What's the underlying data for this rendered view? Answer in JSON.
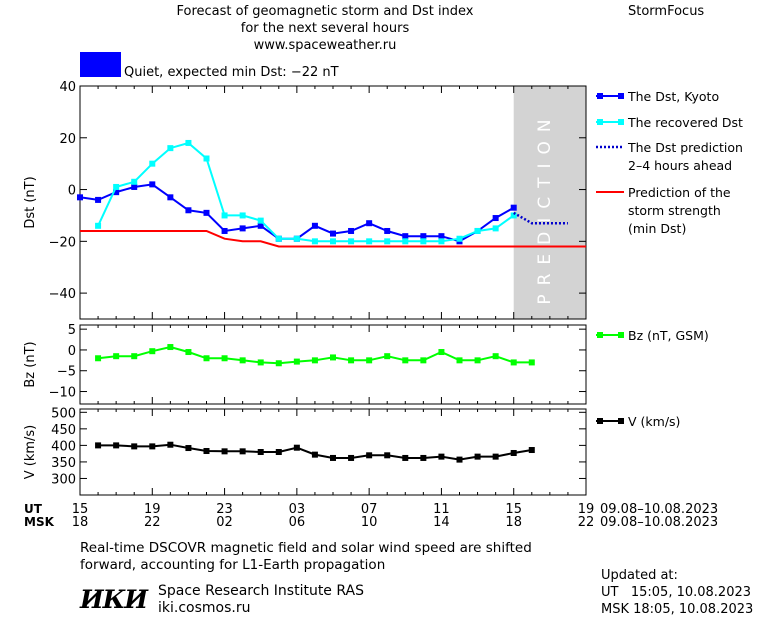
{
  "header": {
    "title_line1": "Forecast of geomagnetic storm and Dst index",
    "title_line2": "for the next several hours",
    "title_line3": "www.spaceweather.ru",
    "brand": "StormFocus",
    "status_text": "Quiet, expected min Dst: −22 nT",
    "status_color": "#0000ff"
  },
  "footer": {
    "note_line1": "Real-time DSCOVR magnetic field and solar wind speed are shifted",
    "note_line2": "forward, accounting for L1-Earth propagation",
    "institute_logo": "ИКИ",
    "institute_name": "Space Research Institute RAS",
    "institute_url": "iki.cosmos.ru",
    "updated_label": "Updated at:",
    "updated_ut": "UT   15:05, 10.08.2023",
    "updated_msk": "MSK 18:05, 10.08.2023"
  },
  "time_axis": {
    "ut_label": "UT",
    "msk_label": "MSK",
    "ut_ticks": [
      "15",
      "19",
      "23",
      "03",
      "07",
      "11",
      "15",
      "19"
    ],
    "msk_ticks": [
      "18",
      "22",
      "02",
      "06",
      "10",
      "14",
      "18",
      "22"
    ],
    "ut_range": "09.08–10.08.2023",
    "msk_range": "09.08–10.08.2023"
  },
  "chart_data": [
    {
      "type": "line",
      "name": "dst",
      "ylabel": "Dst (nT)",
      "ylim": [
        -50,
        40
      ],
      "yticks": [
        40,
        20,
        0,
        -20,
        -40
      ],
      "xlim": [
        0,
        28
      ],
      "prediction_zone": [
        24,
        28
      ],
      "prediction_text": "PREDICTION",
      "series": [
        {
          "name": "The Dst, Kyoto",
          "color": "#0000ff",
          "marker": "square",
          "style": "solid",
          "x": [
            0,
            1,
            2,
            3,
            4,
            5,
            6,
            7,
            8,
            9,
            10,
            11,
            12,
            13,
            14,
            15,
            16,
            17,
            18,
            19,
            20,
            21,
            22,
            23,
            24
          ],
          "y": [
            -3,
            -4,
            -1,
            1,
            2,
            -3,
            -8,
            -9,
            -16,
            -15,
            -14,
            -19,
            -19,
            -14,
            -17,
            -16,
            -13,
            -16,
            -18,
            -18,
            -18,
            -20,
            -16,
            -11,
            -7
          ]
        },
        {
          "name": "The recovered Dst",
          "color": "#00ffff",
          "marker": "square",
          "style": "solid",
          "x": [
            1,
            2,
            3,
            4,
            5,
            6,
            7,
            8,
            9,
            10,
            11,
            12,
            13,
            14,
            15,
            16,
            17,
            18,
            19,
            20,
            21,
            22,
            23,
            24
          ],
          "y": [
            -14,
            1,
            3,
            10,
            16,
            18,
            12,
            -10,
            -10,
            -12,
            -19,
            -19,
            -20,
            -20,
            -20,
            -20,
            -20,
            -20,
            -20,
            -20,
            -19,
            -16,
            -15,
            -10
          ]
        },
        {
          "name": "The Dst prediction 2–4 hours ahead",
          "color": "#0000cc",
          "marker": "none",
          "style": "dotted",
          "x": [
            24,
            25,
            26,
            27
          ],
          "y": [
            -9,
            -13,
            -13,
            -13
          ]
        },
        {
          "name": "Prediction of the storm strength (min Dst)",
          "color": "#ff0000",
          "marker": "none",
          "style": "solid",
          "x": [
            0,
            7,
            8,
            9,
            10,
            11,
            28
          ],
          "y": [
            -16,
            -16,
            -19,
            -20,
            -20,
            -22,
            -22
          ]
        }
      ],
      "legend": [
        {
          "line1": "The Dst, Kyoto",
          "line2": "",
          "line3": ""
        },
        {
          "line1": "The recovered Dst",
          "line2": "",
          "line3": ""
        },
        {
          "line1": "The Dst prediction",
          "line2": "2–4 hours ahead",
          "line3": ""
        },
        {
          "line1": "Prediction of the",
          "line2": "storm strength",
          "line3": "(min Dst)"
        }
      ]
    },
    {
      "type": "line",
      "name": "bz",
      "ylabel": "Bz (nT)",
      "ylim": [
        -13,
        6
      ],
      "yticks": [
        5,
        0,
        -5,
        -10
      ],
      "xlim": [
        0,
        28
      ],
      "series": [
        {
          "name": "Bz (nT, GSM)",
          "color": "#00ff00",
          "marker": "square",
          "style": "solid",
          "x": [
            1,
            2,
            3,
            4,
            5,
            6,
            7,
            8,
            9,
            10,
            11,
            12,
            13,
            14,
            15,
            16,
            17,
            18,
            19,
            20,
            21,
            22,
            23,
            24,
            25
          ],
          "y": [
            -2,
            -1.5,
            -1.5,
            -0.3,
            0.7,
            -0.5,
            -2,
            -2,
            -2.5,
            -3,
            -3.2,
            -2.8,
            -2.5,
            -1.8,
            -2.5,
            -2.5,
            -1.5,
            -2.5,
            -2.5,
            -0.5,
            -2.5,
            -2.5,
            -1.5,
            -3,
            -3
          ]
        }
      ],
      "legend": [
        {
          "line1": "Bz (nT, GSM)",
          "line2": "",
          "line3": ""
        }
      ]
    },
    {
      "type": "line",
      "name": "v",
      "ylabel": "V (km/s)",
      "ylim": [
        250,
        510
      ],
      "yticks": [
        500,
        450,
        400,
        350,
        300
      ],
      "xlim": [
        0,
        28
      ],
      "series": [
        {
          "name": "V (km/s)",
          "color": "#000000",
          "marker": "square",
          "style": "solid",
          "x": [
            1,
            2,
            3,
            4,
            5,
            6,
            7,
            8,
            9,
            10,
            11,
            12,
            13,
            14,
            15,
            16,
            17,
            18,
            19,
            20,
            21,
            22,
            23,
            24,
            25
          ],
          "y": [
            400,
            400,
            397,
            397,
            402,
            392,
            383,
            382,
            382,
            380,
            380,
            393,
            372,
            362,
            362,
            370,
            370,
            362,
            362,
            366,
            357,
            366,
            366,
            377,
            386
          ]
        }
      ],
      "legend": [
        {
          "line1": "V (km/s)",
          "line2": "",
          "line3": ""
        }
      ]
    }
  ]
}
